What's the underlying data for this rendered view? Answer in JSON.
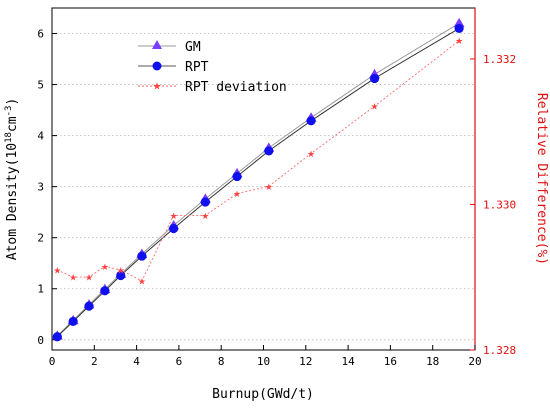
{
  "chart_data": {
    "type": "line",
    "xlabel": "Burnup(GWd/t)",
    "ylabel": "Atom Density(10^18cm^-3)",
    "ylabel_parts": {
      "prefix": "Atom Density(10",
      "sup1": "18",
      "mid": "cm",
      "sup2": "-3",
      "suffix": ")"
    },
    "y2label": "Relative Difference(%)",
    "xlim": [
      0,
      20
    ],
    "ylim": [
      -0.2,
      6.5
    ],
    "y2lim": [
      1.328,
      1.3327
    ],
    "xticks": [
      0,
      2,
      4,
      6,
      8,
      10,
      12,
      14,
      16,
      18,
      20
    ],
    "yticks": [
      0,
      1,
      2,
      3,
      4,
      5,
      6
    ],
    "y2ticks": [
      1.328,
      1.33,
      1.332
    ],
    "y2tick_labels": [
      "1.328",
      "1.330",
      "1.332"
    ],
    "grid": "horizontal-dotted",
    "legend_position": "top-left",
    "series": [
      {
        "name": "GM",
        "axis": "left",
        "marker": "triangle",
        "color": "#7a3cff",
        "x": [
          0.25,
          1.0,
          1.75,
          2.5,
          3.25,
          4.25,
          5.75,
          7.25,
          8.75,
          10.25,
          12.25,
          15.25,
          19.25
        ],
        "y": [
          0.08,
          0.38,
          0.69,
          0.99,
          1.29,
          1.68,
          2.24,
          2.76,
          3.26,
          3.76,
          4.35,
          5.2,
          6.2
        ]
      },
      {
        "name": "RPT",
        "axis": "left",
        "marker": "circle",
        "color": "#1010ee",
        "x": [
          0.25,
          1.0,
          1.75,
          2.5,
          3.25,
          4.25,
          5.75,
          7.25,
          8.75,
          10.25,
          12.25,
          15.25,
          19.25
        ],
        "y": [
          0.06,
          0.36,
          0.66,
          0.96,
          1.26,
          1.64,
          2.18,
          2.7,
          3.2,
          3.7,
          4.29,
          5.12,
          6.1
        ]
      },
      {
        "name": "RPT deviation",
        "axis": "right",
        "marker": "star",
        "color": "#ff4040",
        "x": [
          0.25,
          1.0,
          1.75,
          2.5,
          3.25,
          4.25,
          5.75,
          7.25,
          8.75,
          10.25,
          12.25,
          15.25,
          19.25
        ],
        "y": [
          1.3291,
          1.329,
          1.329,
          1.32915,
          1.3291,
          1.32895,
          1.32985,
          1.32985,
          1.33015,
          1.33025,
          1.3307,
          1.33135,
          1.33225
        ]
      }
    ]
  }
}
